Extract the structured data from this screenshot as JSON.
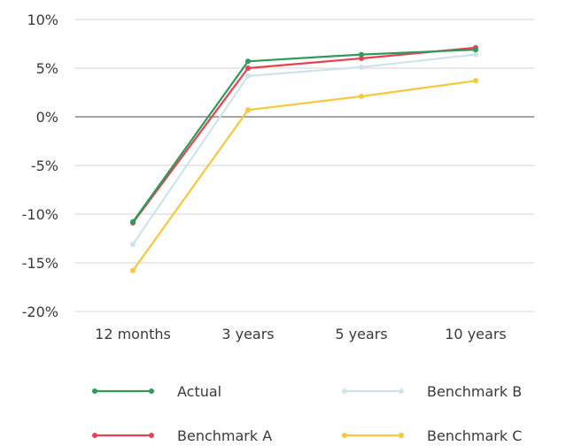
{
  "chart_data": {
    "type": "line",
    "categories": [
      "12 months",
      "3 years",
      "5 years",
      "10 years"
    ],
    "ylim": [
      -20,
      10
    ],
    "y_ticks": [
      {
        "value": 10,
        "label": "10%"
      },
      {
        "value": 5,
        "label": "5%"
      },
      {
        "value": 0,
        "label": "0%"
      },
      {
        "value": -5,
        "label": "-5%"
      },
      {
        "value": -10,
        "label": "-10%"
      },
      {
        "value": -15,
        "label": "-15%"
      },
      {
        "value": -20,
        "label": "-20%"
      }
    ],
    "grid": true,
    "legend_position": "bottom",
    "series": [
      {
        "name": "Actual",
        "color": "#2e9a5c",
        "values": [
          -10.8,
          5.7,
          6.4,
          6.9
        ]
      },
      {
        "name": "Benchmark A",
        "color": "#e8414f",
        "values": [
          -10.9,
          5.0,
          6.0,
          7.1
        ]
      },
      {
        "name": "Benchmark B",
        "color": "#cfe3ea",
        "values": [
          -13.1,
          4.2,
          5.1,
          6.4
        ]
      },
      {
        "name": "Benchmark C",
        "color": "#f6c83a",
        "values": [
          -15.8,
          0.7,
          2.1,
          3.7
        ]
      }
    ]
  }
}
